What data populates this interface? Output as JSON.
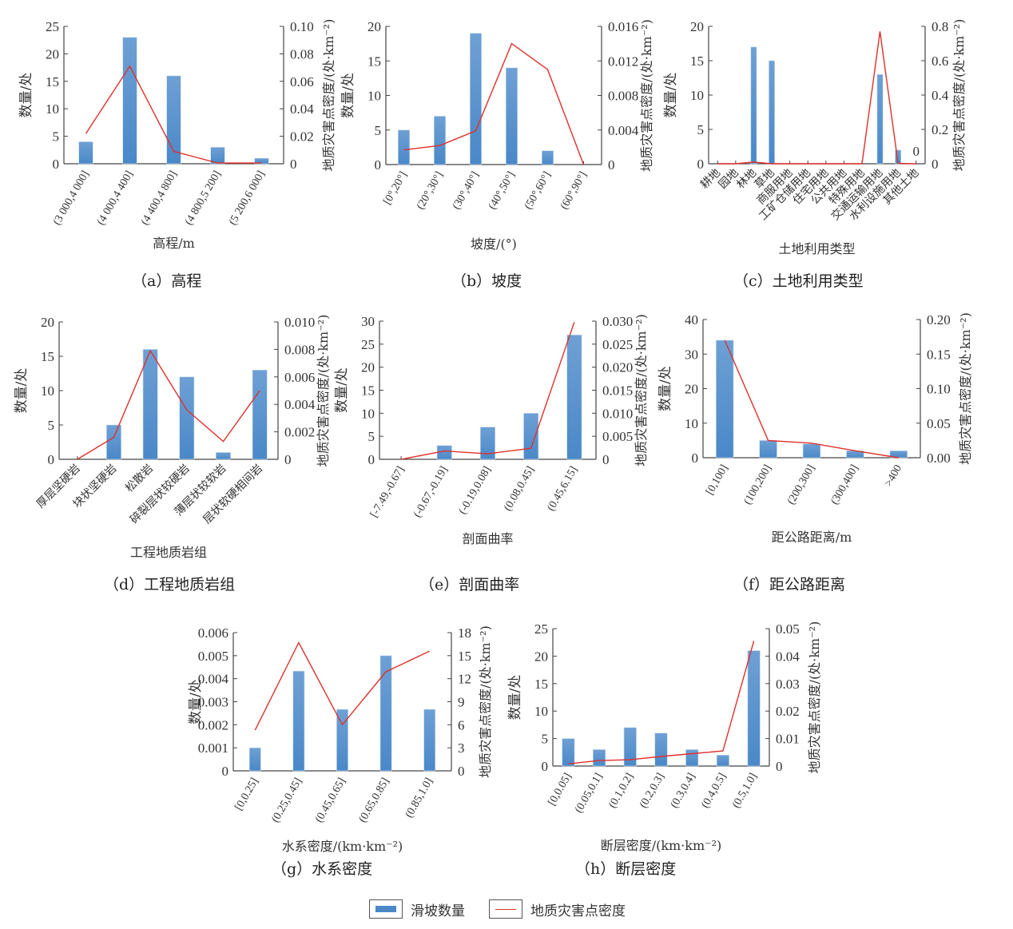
{
  "colors": {
    "bar": "#4a88c8",
    "bar_top": "#6ea0d4",
    "line": "#e0302a",
    "axis": "#444444",
    "text": "#333333"
  },
  "legend": {
    "bar_label": "滑坡数量",
    "line_label": "地质灾害点密度"
  },
  "chart_data": [
    {
      "id": "a",
      "type": "bar",
      "caption": "（a）高程",
      "xlabel": "高程/m",
      "ylabel": "数量/处",
      "y2label": "地质灾害点密度/(处·km⁻²)",
      "categories": [
        "(3 000,4 000]",
        "(4 000,4 400]",
        "(4 400,4 800]",
        "(4 800,5 200]",
        "(5 200,6 000]"
      ],
      "ylim": [
        0,
        25
      ],
      "yticks": [
        "0",
        "5",
        "10",
        "15",
        "20",
        "25"
      ],
      "y2lim": [
        0,
        0.1
      ],
      "y2ticks": [
        "0",
        "0.02",
        "0.04",
        "0.06",
        "0.08",
        "0.10"
      ],
      "series": [
        {
          "name": "滑坡数量",
          "type": "bar",
          "values": [
            4,
            23,
            16,
            3,
            1
          ]
        },
        {
          "name": "地质灾害点密度",
          "type": "line",
          "axis": "right",
          "values": [
            0.022,
            0.071,
            0.009,
            0.0005,
            0.0005
          ]
        }
      ]
    },
    {
      "id": "b",
      "type": "bar",
      "caption": "（b）坡度",
      "xlabel": "坡度/(°)",
      "ylabel": "数量/处",
      "y2label": "地质灾害点密度/(处·km⁻²)",
      "categories": [
        "[0°,20°]",
        "(20°,30°]",
        "(30°,40°]",
        "(40°,50°]",
        "(50°,60°]",
        "(60°,90°]"
      ],
      "ylim": [
        0,
        20
      ],
      "yticks": [
        "0",
        "5",
        "10",
        "15",
        "20"
      ],
      "y2lim": [
        0,
        0.016
      ],
      "y2ticks": [
        "0",
        "0.004",
        "0.008",
        "0.012",
        "0.016"
      ],
      "series": [
        {
          "name": "滑坡数量",
          "type": "bar",
          "values": [
            5,
            7,
            19,
            14,
            2,
            0
          ]
        },
        {
          "name": "地质灾害点密度",
          "type": "line",
          "axis": "right",
          "values": [
            0.0017,
            0.0022,
            0.0039,
            0.014,
            0.011,
            0
          ]
        }
      ]
    },
    {
      "id": "c",
      "type": "bar",
      "caption": "（c）土地利用类型",
      "xlabel": "土地利用类型",
      "ylabel": "数量/处",
      "y2label": "地质灾害点密度/(处·km⁻²)",
      "categories": [
        "耕地",
        "园地",
        "林地",
        "草地",
        "商服用地",
        "工矿仓储用地",
        "住宅用地",
        "公共用地",
        "特殊用地",
        "交通运输用地",
        "水利设施用地",
        "其他土地"
      ],
      "ylim": [
        0,
        20
      ],
      "yticks": [
        "0",
        "5",
        "10",
        "15",
        "20"
      ],
      "y2lim": [
        0,
        0.8
      ],
      "y2ticks": [
        "0",
        "0.2",
        "0.4",
        "0.6",
        "0.8"
      ],
      "annotations": [
        {
          "category": "其他土地",
          "text": "0"
        }
      ],
      "series": [
        {
          "name": "滑坡数量",
          "type": "bar",
          "values": [
            0,
            0,
            17,
            15,
            0,
            0,
            0,
            0,
            0,
            13,
            2,
            0
          ]
        },
        {
          "name": "地质灾害点密度",
          "type": "line",
          "axis": "right",
          "values": [
            0,
            0,
            0.01,
            0,
            0,
            0,
            0,
            0,
            0,
            0.77,
            0.003,
            0
          ]
        }
      ]
    },
    {
      "id": "d",
      "type": "bar",
      "caption": "（d）工程地质岩组",
      "xlabel": "工程地质岩组",
      "ylabel": "数量/处",
      "y2label": "地质灾害点密度/(处·km⁻²)",
      "categories": [
        "厚层坚硬岩",
        "块状坚硬岩",
        "松散岩",
        "碎裂层状较硬岩",
        "薄层状较软岩",
        "层状软硬相间岩"
      ],
      "ylim": [
        0,
        20
      ],
      "yticks": [
        "0",
        "5",
        "10",
        "15",
        "20"
      ],
      "y2lim": [
        0,
        0.01
      ],
      "y2ticks": [
        "0",
        "0.002",
        "0.004",
        "0.006",
        "0.008",
        "0.010"
      ],
      "series": [
        {
          "name": "滑坡数量",
          "type": "bar",
          "values": [
            0,
            5,
            16,
            12,
            1,
            13
          ]
        },
        {
          "name": "地质灾害点密度",
          "type": "line",
          "axis": "right",
          "values": [
            0,
            0.0016,
            0.0079,
            0.0036,
            0.0013,
            0.005
          ]
        }
      ]
    },
    {
      "id": "e",
      "type": "bar",
      "caption": "（e）剖面曲率",
      "xlabel": "剖面曲率",
      "ylabel": "数量/处",
      "y2label": "地质灾害点密度/(处·km⁻²)",
      "categories": [
        "[-7.49,-0.67]",
        "(-0.67,-0.19]",
        "(-0.19,0.08]",
        "(0.08,0.45]",
        "(0.45,6.15]"
      ],
      "ylim": [
        0,
        30
      ],
      "yticks": [
        "0",
        "5",
        "10",
        "15",
        "20",
        "25",
        "30"
      ],
      "y2lim": [
        0,
        0.03
      ],
      "y2ticks": [
        "0",
        "0.005",
        "0.010",
        "0.015",
        "0.020",
        "0.025",
        "0.030"
      ],
      "series": [
        {
          "name": "滑坡数量",
          "type": "bar",
          "values": [
            0,
            3,
            7,
            10,
            27
          ]
        },
        {
          "name": "地质灾害点密度",
          "type": "line",
          "axis": "right",
          "values": [
            0,
            0.0018,
            0.0012,
            0.0024,
            0.0298
          ]
        }
      ]
    },
    {
      "id": "f",
      "type": "bar",
      "caption": "（f）距公路距离",
      "xlabel": "距公路距离/m",
      "ylabel": "数量/处",
      "y2label": "地质灾害点密度/(处·km⁻²)",
      "categories": [
        "[0,100]",
        "(100,200]",
        "(200,300]",
        "(300,400]",
        ">400"
      ],
      "ylim": [
        0,
        40
      ],
      "yticks": [
        "0",
        "10",
        "20",
        "30",
        "40"
      ],
      "y2lim": [
        0,
        0.2
      ],
      "y2ticks": [
        "0.00",
        "0.05",
        "0.10",
        "0.15",
        "0.20"
      ],
      "series": [
        {
          "name": "滑坡数量",
          "type": "bar",
          "values": [
            34,
            5,
            4,
            2,
            2
          ]
        },
        {
          "name": "地质灾害点密度",
          "type": "line",
          "axis": "right",
          "values": [
            0.17,
            0.025,
            0.021,
            0.01,
            0
          ]
        }
      ]
    },
    {
      "id": "g",
      "type": "bar",
      "caption": "（g）水系密度",
      "xlabel": "水系密度/(km·km⁻²)",
      "ylabel": "数量/处",
      "y2label": "地质灾害点密度/(处·km⁻²)",
      "categories": [
        "[0,0.25]",
        "(0.25,0.45]",
        "(0.45,0.65]",
        "(0.65,0.85]",
        "(0.85,1.0]"
      ],
      "ylim": [
        0,
        0.006
      ],
      "yticks": [
        "0",
        "0.001",
        "0.002",
        "0.003",
        "0.004",
        "0.005",
        "0.006"
      ],
      "y2lim": [
        0,
        18
      ],
      "y2ticks": [
        "0",
        "3",
        "6",
        "9",
        "12",
        "15",
        "18"
      ],
      "series": [
        {
          "name": "滑坡数量",
          "type": "bar",
          "values": [
            0.001,
            0.00433,
            0.00267,
            0.005,
            0.00267
          ]
        },
        {
          "name": "地质灾害点密度",
          "type": "line",
          "axis": "right",
          "values": [
            5.3,
            16.7,
            6.0,
            12.9,
            15.6
          ]
        }
      ]
    },
    {
      "id": "h",
      "type": "bar",
      "caption": "（h）断层密度",
      "xlabel": "断层密度/(km·km⁻²)",
      "ylabel": "数量/处",
      "y2label": "地质灾害点密度/(处·km⁻²)",
      "categories": [
        "[0,0.05]",
        "(0.05,0.1]",
        "(0.1,0.2]",
        "(0.2,0.3]",
        "(0.3,0.4]",
        "(0.4,0.5]",
        "(0.5,1.0]"
      ],
      "ylim": [
        0,
        25
      ],
      "yticks": [
        "0",
        "5",
        "10",
        "15",
        "20",
        "25"
      ],
      "y2lim": [
        0,
        0.05
      ],
      "y2ticks": [
        "0",
        "0.01",
        "0.02",
        "0.03",
        "0.04",
        "0.05"
      ],
      "series": [
        {
          "name": "滑坡数量",
          "type": "bar",
          "values": [
            5,
            3,
            7,
            6,
            3,
            2,
            21
          ]
        },
        {
          "name": "地质灾害点密度",
          "type": "line",
          "axis": "right",
          "values": [
            0.0008,
            0.002,
            0.0023,
            0.0035,
            0.0045,
            0.0055,
            0.0455
          ]
        }
      ]
    }
  ]
}
